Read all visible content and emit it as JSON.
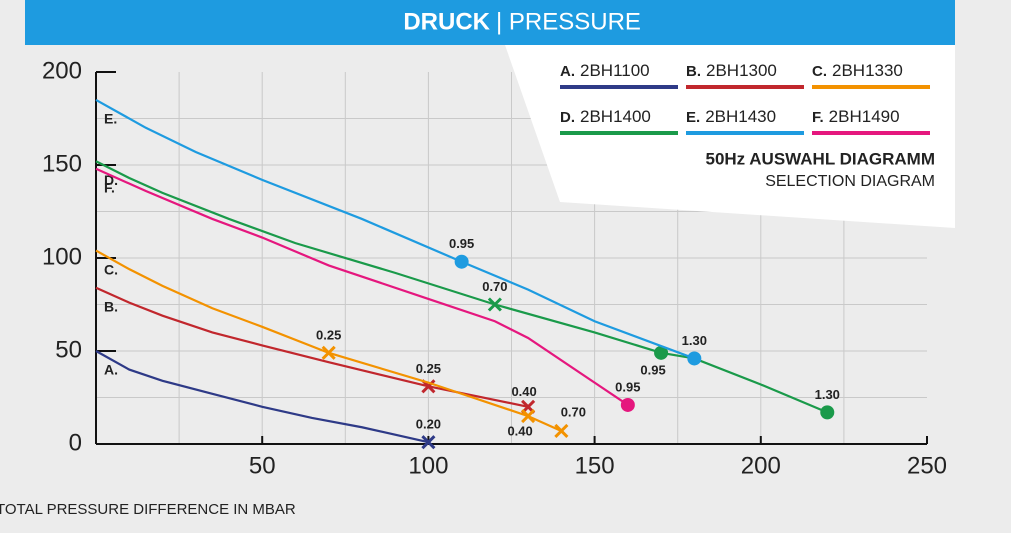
{
  "chart_data": {
    "type": "line",
    "title": "DRUCK",
    "title_rest": "| PRESSURE",
    "legend_title": "50Hz AUSWAHL DIAGRAMM",
    "legend_subtitle": "SELECTION DIAGRAM",
    "xlabel": "TOTAL PRESSURE DIFFERENCE IN MBAR",
    "xlim": [
      0,
      250
    ],
    "ylim": [
      0,
      200
    ],
    "xticks": [
      50,
      100,
      150,
      200,
      250
    ],
    "yticks": [
      0,
      50,
      100,
      150,
      200
    ],
    "xgrid": [
      25,
      50,
      75,
      100,
      125,
      150,
      175,
      200,
      225
    ],
    "ygrid": [
      25,
      50,
      75,
      100,
      125,
      150,
      175
    ],
    "series": [
      {
        "letter": "A.",
        "name": "2BH1100",
        "color": "#2e3a87",
        "x": [
          0,
          10,
          20,
          35,
          50,
          65,
          80,
          100
        ],
        "values": [
          50,
          40,
          34,
          27,
          20,
          14,
          9,
          1
        ],
        "markers": [
          {
            "x": 100,
            "y": 1,
            "label": "0.20",
            "shape": "x"
          }
        ]
      },
      {
        "letter": "B.",
        "name": "2BH1300",
        "color": "#c1272d",
        "x": [
          0,
          10,
          20,
          35,
          50,
          70,
          100,
          130
        ],
        "values": [
          84,
          76,
          69,
          60,
          53,
          44,
          31,
          20
        ],
        "markers": [
          {
            "x": 100,
            "y": 31,
            "label": "0.25",
            "shape": "x"
          },
          {
            "x": 130,
            "y": 20,
            "label": "0.40",
            "shape": "x"
          }
        ]
      },
      {
        "letter": "C.",
        "name": "2BH1330",
        "color": "#f39200",
        "x": [
          0,
          10,
          20,
          35,
          50,
          70,
          100,
          130,
          140
        ],
        "values": [
          104,
          94,
          85,
          73,
          63,
          49,
          33,
          15,
          7
        ],
        "markers": [
          {
            "x": 70,
            "y": 49,
            "label": "0.25",
            "shape": "x"
          },
          {
            "x": 130,
            "y": 15,
            "label": "0.40",
            "shape": "x"
          },
          {
            "x": 140,
            "y": 7,
            "label": "0.70",
            "shape": "x"
          }
        ]
      },
      {
        "letter": "D.",
        "name": "2BH1400",
        "color": "#1a9a4a",
        "x": [
          0,
          10,
          20,
          40,
          60,
          90,
          120,
          150,
          170,
          180,
          200,
          220
        ],
        "values": [
          152,
          143,
          135,
          121,
          108,
          92,
          75,
          60,
          49,
          46,
          32,
          17
        ],
        "markers": [
          {
            "x": 120,
            "y": 75,
            "label": "0.70",
            "shape": "x"
          },
          {
            "x": 170,
            "y": 49,
            "label": "0.95",
            "shape": "circle"
          },
          {
            "x": 220,
            "y": 17,
            "label": "1.30",
            "shape": "circle"
          }
        ]
      },
      {
        "letter": "E.",
        "name": "2BH1430",
        "color": "#1e9be0",
        "x": [
          0,
          15,
          30,
          50,
          80,
          110,
          130,
          150,
          180
        ],
        "values": [
          185,
          170,
          157,
          142,
          121,
          98,
          83,
          66,
          46
        ],
        "markers": [
          {
            "x": 110,
            "y": 98,
            "label": "0.95",
            "shape": "circle"
          },
          {
            "x": 180,
            "y": 46,
            "label": "1.30",
            "shape": "circle"
          }
        ]
      },
      {
        "letter": "F.",
        "name": "2BH1490",
        "color": "#e5177e",
        "x": [
          0,
          15,
          35,
          50,
          70,
          100,
          120,
          130,
          150,
          160
        ],
        "values": [
          148,
          136,
          121,
          111,
          96,
          78,
          66,
          57,
          33,
          21
        ],
        "markers": [
          {
            "x": 160,
            "y": 21,
            "label": "0.95",
            "shape": "circle"
          }
        ]
      }
    ]
  }
}
